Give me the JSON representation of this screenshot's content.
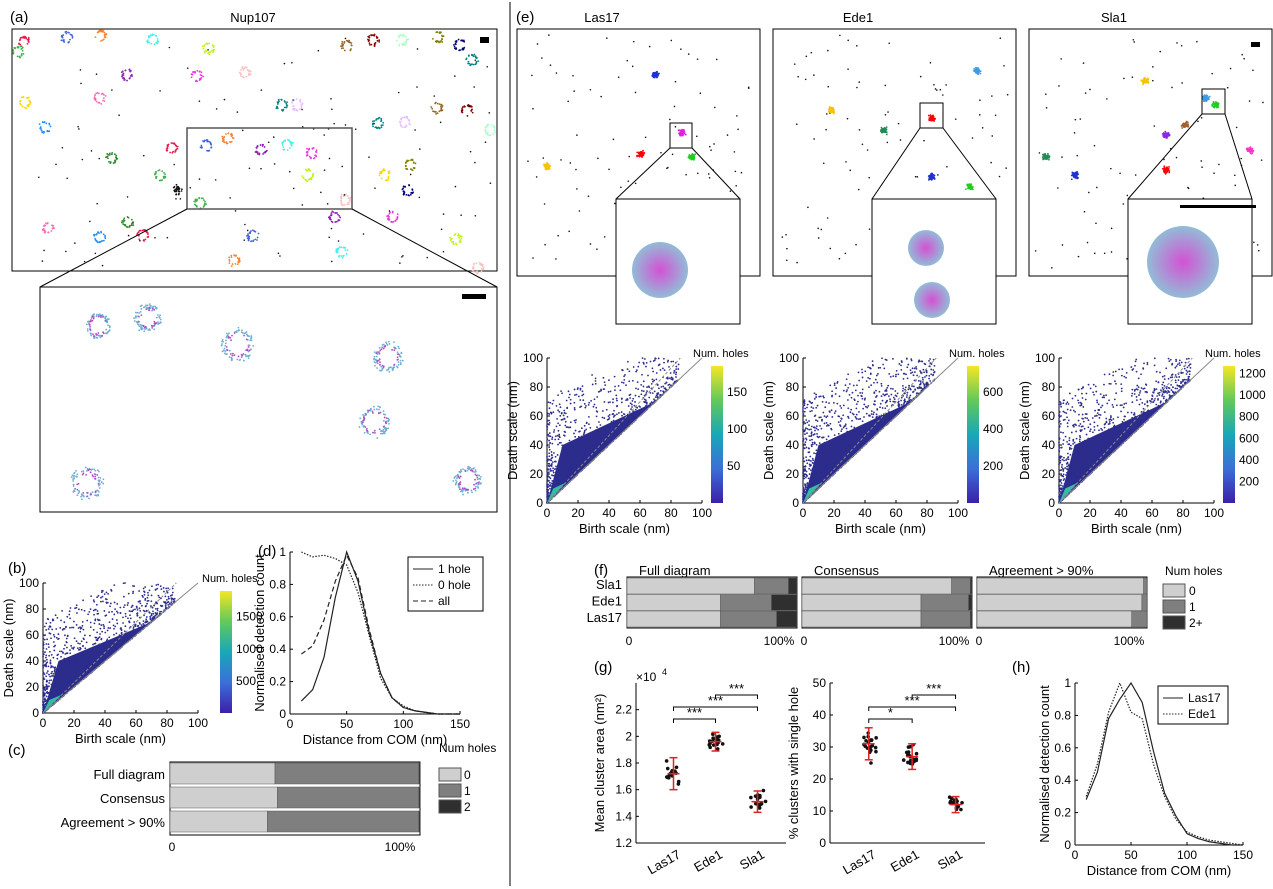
{
  "figure": {
    "panel_labels": [
      "(a)",
      "(b)",
      "(c)",
      "(d)",
      "(e)",
      "(f)",
      "(g)",
      "(h)"
    ],
    "nup107_title": "Nup107",
    "protein_titles": [
      "Las17",
      "Ede1",
      "Sla1"
    ],
    "colors": {
      "viridis": [
        "#440154",
        "#3b528b",
        "#21918c",
        "#5ec962",
        "#fde725"
      ],
      "scatter_dark": "#2c2c8c",
      "red": "#dd2222",
      "bar_light": "#cfcfcf",
      "bar_mid": "#7f7f7f",
      "bar_dark": "#2f2f2f"
    }
  },
  "chart_data": [
    {
      "panel": "b",
      "type": "scatter",
      "xlabel": "Birth scale (nm)",
      "ylabel": "Death scale (nm)",
      "xlim": [
        0,
        100
      ],
      "ylim": [
        0,
        100
      ],
      "xticks": [
        "0",
        "20",
        "40",
        "60",
        "80",
        "100"
      ],
      "yticks": [
        "0",
        "20",
        "40",
        "60",
        "80",
        "100"
      ],
      "colorbar": {
        "title": "Num. holes",
        "ticks": [
          "500",
          "1000",
          "1500"
        ],
        "max": 1900
      }
    },
    {
      "panel": "c",
      "type": "bar",
      "orientation": "horizontal",
      "stacked": true,
      "categories": [
        "Full diagram",
        "Consensus",
        "Agreement > 90%"
      ],
      "series": [
        {
          "name": "0",
          "values": [
            42,
            43,
            39
          ]
        },
        {
          "name": "1",
          "values": [
            57.5,
            56.5,
            60.5
          ]
        },
        {
          "name": "2",
          "values": [
            0.5,
            0.5,
            0.5
          ]
        }
      ],
      "xticks": [
        "0",
        "100%"
      ],
      "legend_title": "Num holes"
    },
    {
      "panel": "d",
      "type": "line",
      "xlabel": "Distance from COM (nm)",
      "ylabel": "Normalised detection count",
      "xlim": [
        0,
        150
      ],
      "ylim": [
        0,
        1
      ],
      "xticks": [
        "0",
        "50",
        "100",
        "150"
      ],
      "yticks": [
        "0",
        "0.2",
        "0.4",
        "0.6",
        "0.8",
        "1"
      ],
      "x": [
        10,
        20,
        30,
        40,
        50,
        60,
        70,
        80,
        90,
        100,
        110,
        120,
        130,
        140,
        150
      ],
      "series": [
        {
          "name": "1 hole",
          "style": "solid",
          "values": [
            0.08,
            0.15,
            0.35,
            0.72,
            1.0,
            0.82,
            0.5,
            0.25,
            0.1,
            0.04,
            0.02,
            0.01,
            0.0,
            0.0,
            0.0
          ]
        },
        {
          "name": "0 hole",
          "style": "dotted",
          "values": [
            1.0,
            0.97,
            0.98,
            0.96,
            0.92,
            0.75,
            0.48,
            0.22,
            0.1,
            0.05,
            0.02,
            0.01,
            0.0,
            0.0,
            0.0
          ]
        },
        {
          "name": "all",
          "style": "dashed",
          "values": [
            0.37,
            0.42,
            0.58,
            0.82,
            0.98,
            0.84,
            0.52,
            0.25,
            0.1,
            0.04,
            0.02,
            0.01,
            0.0,
            0.0,
            0.0
          ]
        }
      ]
    },
    {
      "panel": "e-Las17",
      "type": "scatter",
      "xlabel": "Birth scale (nm)",
      "ylabel": "Death scale (nm)",
      "xlim": [
        0,
        100
      ],
      "ylim": [
        0,
        100
      ],
      "xticks": [
        "0",
        "20",
        "40",
        "60",
        "80",
        "100"
      ],
      "yticks": [
        "0",
        "20",
        "40",
        "60",
        "80",
        "100"
      ],
      "colorbar": {
        "title": "Num. holes",
        "ticks": [
          "50",
          "100",
          "150"
        ],
        "max": 185
      }
    },
    {
      "panel": "e-Ede1",
      "type": "scatter",
      "xlabel": "Birth scale (nm)",
      "ylabel": "Death scale (nm)",
      "xlim": [
        0,
        100
      ],
      "ylim": [
        0,
        100
      ],
      "xticks": [
        "0",
        "20",
        "40",
        "60",
        "80",
        "100"
      ],
      "yticks": [
        "0",
        "20",
        "40",
        "60",
        "80",
        "100"
      ],
      "colorbar": {
        "title": "Num. holes",
        "ticks": [
          "200",
          "400",
          "600"
        ],
        "max": 740
      }
    },
    {
      "panel": "e-Sla1",
      "type": "scatter",
      "xlabel": "Birth scale (nm)",
      "ylabel": "Death scale (nm)",
      "xlim": [
        0,
        100
      ],
      "ylim": [
        0,
        100
      ],
      "xticks": [
        "0",
        "20",
        "40",
        "60",
        "80",
        "100"
      ],
      "yticks": [
        "0",
        "20",
        "40",
        "60",
        "80",
        "100"
      ],
      "colorbar": {
        "title": "Num. holes",
        "ticks": [
          "200",
          "400",
          "600",
          "800",
          "1000",
          "1200"
        ],
        "max": 1270
      }
    },
    {
      "panel": "f",
      "type": "bar",
      "orientation": "horizontal",
      "stacked": true,
      "categories": [
        "Sla1",
        "Ede1",
        "Las17"
      ],
      "panels": [
        {
          "title": "Full diagram",
          "series": [
            {
              "name": "0",
              "values": [
                75,
                55,
                55
              ]
            },
            {
              "name": "1",
              "values": [
                20,
                30,
                33
              ]
            },
            {
              "name": "2+",
              "values": [
                5,
                15,
                12
              ]
            }
          ]
        },
        {
          "title": "Consensus",
          "series": [
            {
              "name": "0",
              "values": [
                88,
                70,
                70
              ]
            },
            {
              "name": "1",
              "values": [
                11,
                28,
                29
              ]
            },
            {
              "name": "2+",
              "values": [
                1,
                2,
                1
              ]
            }
          ]
        },
        {
          "title": "Agreement > 90%",
          "series": [
            {
              "name": "0",
              "values": [
                98,
                97,
                91
              ]
            },
            {
              "name": "1",
              "values": [
                2,
                3,
                9
              ]
            },
            {
              "name": "2+",
              "values": [
                0,
                0,
                0
              ]
            }
          ]
        }
      ],
      "xticks": [
        "0",
        "100%"
      ],
      "legend_title": "Num holes"
    },
    {
      "panel": "g-left",
      "type": "scatter",
      "categories": [
        "Las17",
        "Ede1",
        "Sla1"
      ],
      "ylabel": "Mean cluster area (nm²)",
      "exponent": "×10",
      "exponent_power": "4",
      "ylim": [
        1.2,
        2.4
      ],
      "yticks": [
        "1.2",
        "1.4",
        "1.6",
        "1.8",
        "2",
        "2.2"
      ],
      "means": [
        1.72,
        1.96,
        1.51
      ],
      "sd": [
        0.12,
        0.07,
        0.08
      ],
      "significance": [
        {
          "pair": [
            "Las17",
            "Ede1"
          ],
          "label": "***"
        },
        {
          "pair": [
            "Ede1",
            "Sla1"
          ],
          "label": "***"
        },
        {
          "pair": [
            "Las17",
            "Sla1"
          ],
          "label": "***"
        }
      ]
    },
    {
      "panel": "g-right",
      "type": "scatter",
      "categories": [
        "Las17",
        "Ede1",
        "Sla1"
      ],
      "ylabel": "% clusters with single hole",
      "ylim": [
        0,
        50
      ],
      "yticks": [
        "0",
        "10",
        "20",
        "30",
        "40",
        "50"
      ],
      "means": [
        31,
        27,
        12
      ],
      "sd": [
        5,
        4,
        2.5
      ],
      "significance": [
        {
          "pair": [
            "Las17",
            "Ede1"
          ],
          "label": "*"
        },
        {
          "pair": [
            "Ede1",
            "Sla1"
          ],
          "label": "***"
        },
        {
          "pair": [
            "Las17",
            "Sla1"
          ],
          "label": "***"
        }
      ]
    },
    {
      "panel": "h",
      "type": "line",
      "xlabel": "Distance from COM (nm)",
      "ylabel": "Normalised detection count",
      "xlim": [
        0,
        150
      ],
      "ylim": [
        0,
        1
      ],
      "xticks": [
        "0",
        "50",
        "100",
        "150"
      ],
      "yticks": [
        "0",
        "0.2",
        "0.4",
        "0.6",
        "0.8",
        "1"
      ],
      "x": [
        10,
        20,
        30,
        40,
        50,
        60,
        70,
        80,
        90,
        100,
        110,
        120,
        130,
        140,
        150
      ],
      "series": [
        {
          "name": "Las17",
          "style": "solid",
          "values": [
            0.28,
            0.45,
            0.78,
            0.9,
            1.0,
            0.88,
            0.58,
            0.32,
            0.18,
            0.07,
            0.04,
            0.02,
            0.01,
            0.0,
            0.0
          ]
        },
        {
          "name": "Ede1",
          "style": "dotted",
          "values": [
            0.3,
            0.5,
            0.82,
            1.0,
            0.82,
            0.78,
            0.5,
            0.3,
            0.16,
            0.08,
            0.05,
            0.03,
            0.02,
            0.01,
            0.0
          ]
        }
      ]
    }
  ]
}
